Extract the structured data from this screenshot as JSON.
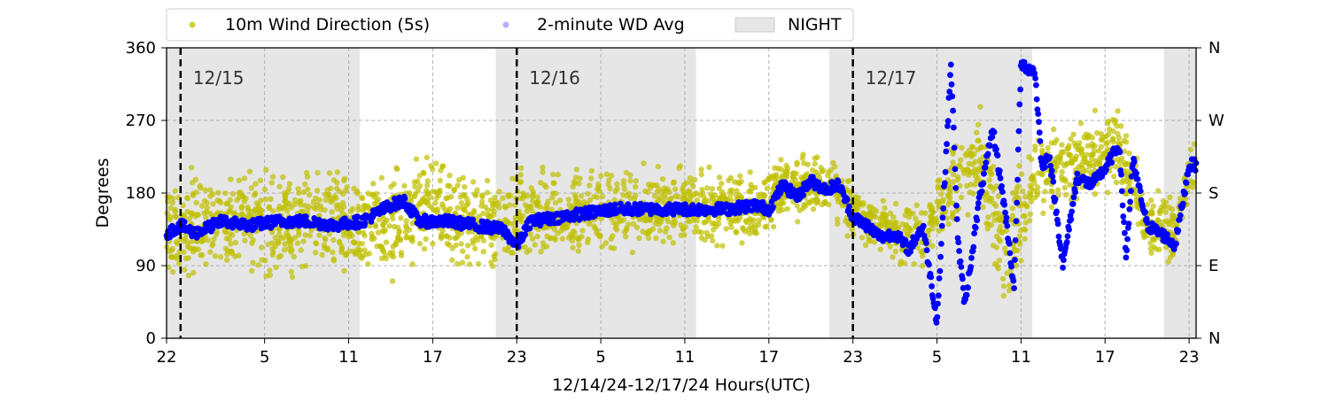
{
  "chart_data": {
    "type": "scatter",
    "title": "",
    "xlabel": "12/14/24-12/17/24  Hours(UTC)",
    "ylabel": "Degrees",
    "ylim": [
      0,
      360
    ],
    "xlim_hours_from_1214_2200": [
      0,
      73.5
    ],
    "yticks": [
      0,
      90,
      180,
      270,
      360
    ],
    "ytick_labels": [
      "0",
      "90",
      "180",
      "270",
      "360"
    ],
    "right_ticks": [
      0,
      90,
      180,
      270,
      360
    ],
    "right_tick_labels": [
      "N",
      "E",
      "S",
      "W",
      "N"
    ],
    "xticks_hours_from_1214_2200": [
      0,
      7,
      13,
      19,
      25,
      31,
      37,
      43,
      49,
      55,
      61,
      67,
      73
    ],
    "xtick_labels": [
      "22",
      "5",
      "11",
      "17",
      "23",
      "5",
      "11",
      "17",
      "23",
      "5",
      "11",
      "17",
      "23"
    ],
    "grid": true,
    "legend_placement": "top",
    "legend": [
      "10m Wind Direction (5s)",
      "2-minute WD Avg",
      "NIGHT"
    ],
    "night_periods_hours_from_1214_2200": [
      [
        0,
        13.8
      ],
      [
        23.5,
        37.8
      ],
      [
        47.3,
        61.8
      ],
      [
        71.2,
        73.5
      ]
    ],
    "day_boundaries_hours_from_1214_2200": [
      1,
      25,
      49
    ],
    "day_labels": [
      "12/15",
      "12/16",
      "12/17"
    ],
    "series": [
      {
        "name": "10m Wind Direction (5s)",
        "color": "#bfbf00",
        "kind": "scatter-band",
        "x_hours_from_1214_2200": [
          0,
          2,
          4,
          6,
          8,
          10,
          12,
          14,
          16,
          18,
          20,
          22,
          24,
          26,
          28,
          30,
          32,
          34,
          36,
          38,
          40,
          42,
          44,
          46,
          48,
          50,
          52,
          54,
          56,
          58,
          60,
          62,
          64,
          66,
          68,
          70,
          72,
          73
        ],
        "center": [
          135,
          140,
          140,
          145,
          140,
          150,
          145,
          140,
          140,
          165,
          150,
          145,
          140,
          150,
          155,
          155,
          160,
          160,
          160,
          160,
          165,
          160,
          185,
          190,
          180,
          145,
          130,
          125,
          190,
          230,
          100,
          210,
          210,
          225,
          240,
          140,
          130,
          210
        ],
        "spread": [
          50,
          55,
          55,
          50,
          55,
          50,
          50,
          50,
          55,
          50,
          50,
          45,
          45,
          45,
          45,
          45,
          40,
          40,
          40,
          35,
          35,
          35,
          30,
          30,
          30,
          30,
          30,
          30,
          40,
          50,
          60,
          40,
          35,
          40,
          45,
          40,
          30,
          30
        ]
      },
      {
        "name": "2-minute WD Avg",
        "color": "#0000ff",
        "kind": "dense-trace",
        "x_hours_from_1214_2200": [
          0,
          1,
          2,
          4,
          6,
          8,
          10,
          12,
          14,
          16,
          17,
          18,
          20,
          22,
          24,
          25,
          26,
          28,
          30,
          32,
          34,
          36,
          38,
          40,
          42,
          43,
          44,
          45,
          46,
          47,
          48,
          49,
          50,
          51,
          52,
          53,
          54,
          55,
          56,
          56.5,
          57,
          58,
          59,
          60,
          60.5,
          61,
          62,
          62.5,
          63,
          64,
          65,
          66,
          67,
          68,
          68.5,
          69,
          70,
          71,
          72,
          73
        ],
        "y": [
          130,
          140,
          130,
          145,
          140,
          145,
          145,
          140,
          145,
          165,
          170,
          145,
          145,
          140,
          135,
          115,
          145,
          150,
          155,
          160,
          160,
          160,
          160,
          160,
          165,
          160,
          190,
          175,
          195,
          185,
          190,
          150,
          140,
          125,
          130,
          110,
          140,
          20,
          340,
          120,
          40,
          170,
          260,
          140,
          60,
          340,
          330,
          210,
          230,
          90,
          200,
          190,
          210,
          240,
          100,
          220,
          140,
          130,
          115,
          215
        ]
      }
    ]
  }
}
